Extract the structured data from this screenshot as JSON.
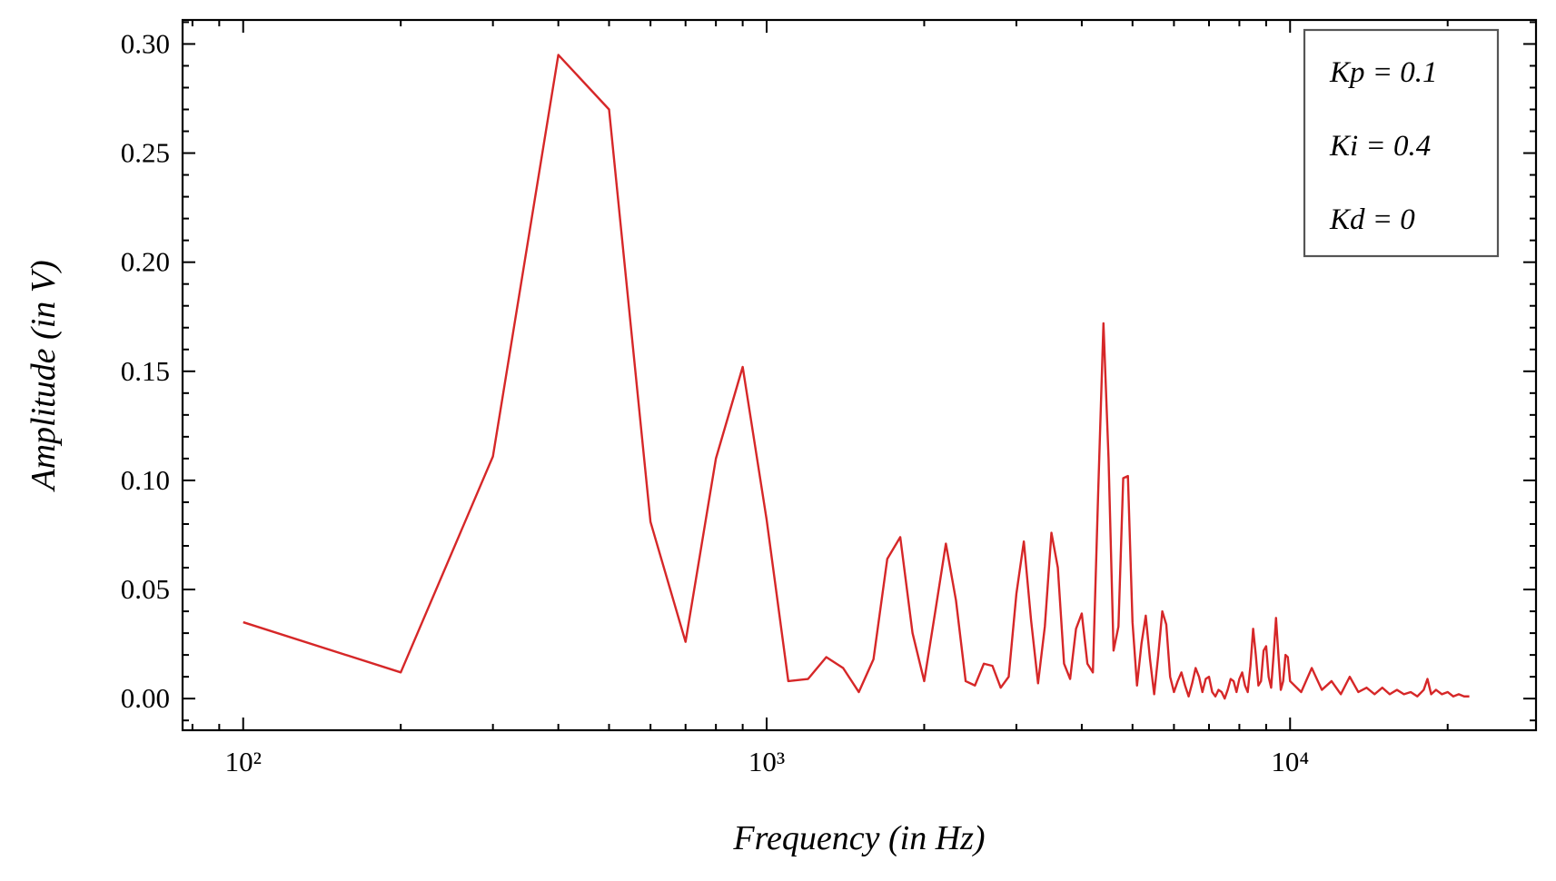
{
  "chart_data": {
    "type": "line",
    "xlabel": "Frequency (in Hz)",
    "ylabel": "Amplitude (in V)",
    "color": "#d62728",
    "xscale": "log",
    "xlim": [
      76.6,
      29500
    ],
    "ylim": [
      -0.0145,
      0.311
    ],
    "xticks": [
      {
        "value": 100,
        "label": "10²"
      },
      {
        "value": 1000,
        "label": "10³"
      },
      {
        "value": 10000,
        "label": "10⁴"
      }
    ],
    "xminorticks": [
      80,
      90,
      200,
      300,
      400,
      500,
      600,
      700,
      800,
      900,
      2000,
      3000,
      4000,
      5000,
      6000,
      7000,
      8000,
      9000,
      20000
    ],
    "yticks": [
      {
        "value": 0,
        "label": "0.00"
      },
      {
        "value": 0.05,
        "label": "0.05"
      },
      {
        "value": 0.1,
        "label": "0.10"
      },
      {
        "value": 0.15,
        "label": "0.15"
      },
      {
        "value": 0.2,
        "label": "0.20"
      },
      {
        "value": 0.25,
        "label": "0.25"
      },
      {
        "value": 0.3,
        "label": "0.30"
      }
    ],
    "yminorticks": [
      -0.01,
      0.01,
      0.02,
      0.03,
      0.04,
      0.06,
      0.07,
      0.08,
      0.09,
      0.11,
      0.12,
      0.13,
      0.14,
      0.16,
      0.17,
      0.18,
      0.19,
      0.21,
      0.22,
      0.23,
      0.24,
      0.26,
      0.27,
      0.28,
      0.29,
      0.31
    ],
    "annotations": [
      "Kp = 0.1",
      "Ki = 0.4",
      "Kd = 0"
    ],
    "x": [
      100,
      200,
      300,
      400,
      500,
      600,
      700,
      800,
      900,
      1000,
      1100,
      1200,
      1300,
      1400,
      1500,
      1600,
      1700,
      1800,
      1900,
      2000,
      2100,
      2200,
      2300,
      2400,
      2500,
      2600,
      2700,
      2800,
      2900,
      3000,
      3100,
      3200,
      3300,
      3400,
      3500,
      3600,
      3700,
      3800,
      3900,
      4000,
      4100,
      4200,
      4300,
      4400,
      4500,
      4600,
      4700,
      4800,
      4900,
      5000,
      5100,
      5200,
      5300,
      5400,
      5500,
      5600,
      5700,
      5800,
      5900,
      6000,
      6100,
      6200,
      6300,
      6400,
      6500,
      6600,
      6700,
      6800,
      6900,
      7000,
      7100,
      7200,
      7300,
      7400,
      7500,
      7600,
      7700,
      7800,
      7900,
      8000,
      8100,
      8200,
      8300,
      8400,
      8500,
      8600,
      8700,
      8800,
      8900,
      9000,
      9100,
      9200,
      9300,
      9400,
      9500,
      9600,
      9700,
      9800,
      9900,
      10000,
      10500,
      11000,
      11500,
      12000,
      12500,
      13000,
      13500,
      14000,
      14500,
      15000,
      15500,
      16000,
      16500,
      17000,
      17500,
      18000,
      18300,
      18600,
      19000,
      19500,
      20000,
      20500,
      21000,
      21500,
      22000
    ],
    "values": [
      0.035,
      0.012,
      0.111,
      0.295,
      0.27,
      0.081,
      0.026,
      0.11,
      0.152,
      0.082,
      0.008,
      0.009,
      0.019,
      0.014,
      0.003,
      0.018,
      0.064,
      0.074,
      0.03,
      0.008,
      0.04,
      0.071,
      0.045,
      0.008,
      0.006,
      0.016,
      0.015,
      0.005,
      0.01,
      0.048,
      0.072,
      0.036,
      0.007,
      0.033,
      0.076,
      0.06,
      0.016,
      0.009,
      0.032,
      0.039,
      0.016,
      0.012,
      0.095,
      0.172,
      0.11,
      0.022,
      0.033,
      0.101,
      0.102,
      0.035,
      0.006,
      0.025,
      0.038,
      0.018,
      0.002,
      0.02,
      0.04,
      0.034,
      0.01,
      0.003,
      0.008,
      0.012,
      0.006,
      0.001,
      0.007,
      0.014,
      0.01,
      0.003,
      0.009,
      0.01,
      0.003,
      0.001,
      0.004,
      0.003,
      0.0,
      0.004,
      0.009,
      0.008,
      0.003,
      0.009,
      0.012,
      0.006,
      0.003,
      0.015,
      0.032,
      0.02,
      0.006,
      0.008,
      0.022,
      0.024,
      0.01,
      0.005,
      0.02,
      0.037,
      0.02,
      0.004,
      0.008,
      0.02,
      0.019,
      0.008,
      0.003,
      0.014,
      0.004,
      0.008,
      0.002,
      0.01,
      0.003,
      0.005,
      0.002,
      0.005,
      0.002,
      0.004,
      0.002,
      0.003,
      0.001,
      0.004,
      0.009,
      0.002,
      0.004,
      0.002,
      0.003,
      0.001,
      0.002,
      0.001,
      0.001
    ]
  }
}
